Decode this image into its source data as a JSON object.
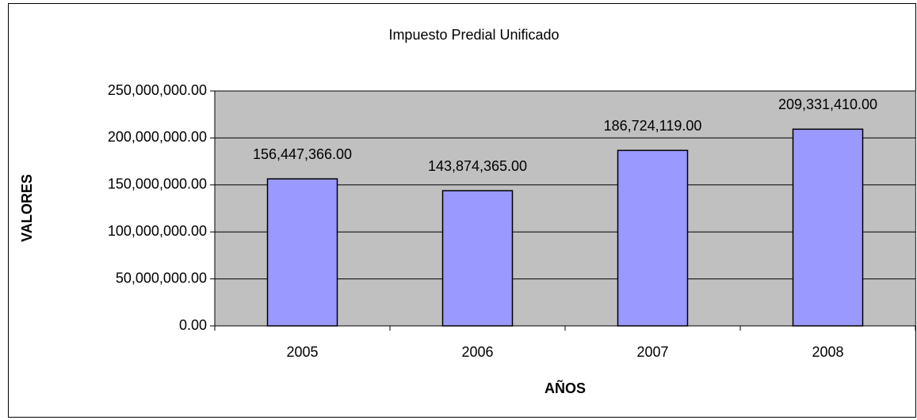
{
  "chart_data": {
    "type": "bar",
    "title": "Impuesto Predial Unificado",
    "x_label": "AÑOS",
    "y_label": "VALORES",
    "categories": [
      "2005",
      "2006",
      "2007",
      "2008"
    ],
    "values": [
      156447366,
      143874365,
      186724119,
      209331410
    ],
    "value_labels": [
      "156,447,366.00",
      "143,874,365.00",
      "186,724,119.00",
      "209,331,410.00"
    ],
    "color": "#9999ff",
    "ylim": [
      0,
      250000000
    ],
    "yticks": [
      {
        "value": 0,
        "label": "0.00"
      },
      {
        "value": 50000000,
        "label": "50,000,000.00"
      },
      {
        "value": 100000000,
        "label": "100,000,000.00"
      },
      {
        "value": 150000000,
        "label": "150,000,000.00"
      },
      {
        "value": 200000000,
        "label": "200,000,000.00"
      },
      {
        "value": 250000000,
        "label": "250,000,000.00"
      }
    ],
    "grid": true
  }
}
